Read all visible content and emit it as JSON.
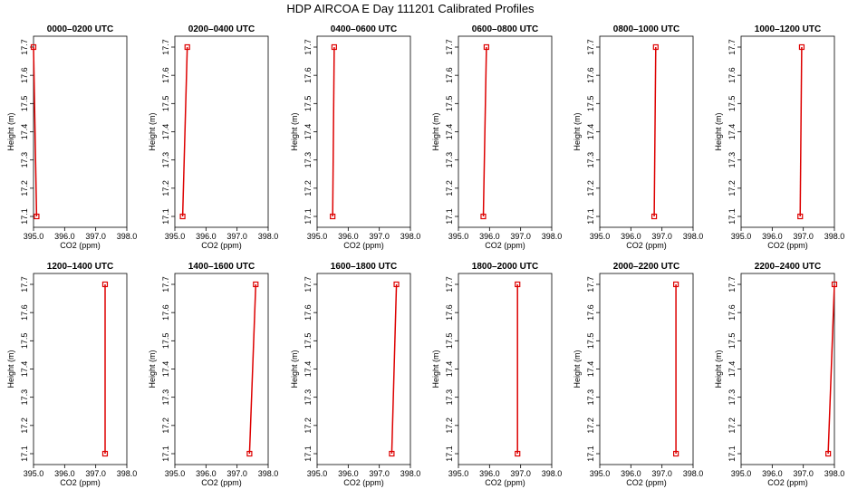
{
  "figure": {
    "title": "HDP AIRCOA E  Day 111201  Calibrated Profiles"
  },
  "style": {
    "line_color": "#dd0000",
    "marker_color": "#dd0000",
    "axis_color": "#000000"
  },
  "chart_data": [
    {
      "type": "line",
      "title": "0000–0200 UTC",
      "xlabel": "CO2 (ppm)",
      "ylabel": "Height (m)",
      "xlim": [
        395.0,
        398.0
      ],
      "ylim": [
        17.1,
        17.7
      ],
      "xticks": [
        "395.0",
        "396.0",
        "397.0",
        "398.0"
      ],
      "yticks": [
        "17.1",
        "17.2",
        "17.3",
        "17.4",
        "17.5",
        "17.6",
        "17.7"
      ],
      "x": [
        395.1,
        395.0
      ],
      "y": [
        17.1,
        17.7
      ]
    },
    {
      "type": "line",
      "title": "0200–0400 UTC",
      "xlabel": "CO2 (ppm)",
      "ylabel": "Height (m)",
      "xlim": [
        395.0,
        398.0
      ],
      "ylim": [
        17.1,
        17.7
      ],
      "xticks": [
        "395.0",
        "396.0",
        "397.0",
        "398.0"
      ],
      "yticks": [
        "17.1",
        "17.2",
        "17.3",
        "17.4",
        "17.5",
        "17.6",
        "17.7"
      ],
      "x": [
        395.25,
        395.4
      ],
      "y": [
        17.1,
        17.7
      ]
    },
    {
      "type": "line",
      "title": "0400–0600 UTC",
      "xlabel": "CO2 (ppm)",
      "ylabel": "Height (m)",
      "xlim": [
        395.0,
        398.0
      ],
      "ylim": [
        17.1,
        17.7
      ],
      "xticks": [
        "395.0",
        "396.0",
        "397.0",
        "398.0"
      ],
      "yticks": [
        "17.1",
        "17.2",
        "17.3",
        "17.4",
        "17.5",
        "17.6",
        "17.7"
      ],
      "x": [
        395.5,
        395.55
      ],
      "y": [
        17.1,
        17.7
      ]
    },
    {
      "type": "line",
      "title": "0600–0800 UTC",
      "xlabel": "CO2 (ppm)",
      "ylabel": "Height (m)",
      "xlim": [
        395.0,
        398.0
      ],
      "ylim": [
        17.1,
        17.7
      ],
      "xticks": [
        "395.0",
        "396.0",
        "397.0",
        "398.0"
      ],
      "yticks": [
        "17.1",
        "17.2",
        "17.3",
        "17.4",
        "17.5",
        "17.6",
        "17.7"
      ],
      "x": [
        395.8,
        395.9
      ],
      "y": [
        17.1,
        17.7
      ]
    },
    {
      "type": "line",
      "title": "0800–1000 UTC",
      "xlabel": "CO2 (ppm)",
      "ylabel": "Height (m)",
      "xlim": [
        395.0,
        398.0
      ],
      "ylim": [
        17.1,
        17.7
      ],
      "xticks": [
        "395.0",
        "396.0",
        "397.0",
        "398.0"
      ],
      "yticks": [
        "17.1",
        "17.2",
        "17.3",
        "17.4",
        "17.5",
        "17.6",
        "17.7"
      ],
      "x": [
        396.75,
        396.8
      ],
      "y": [
        17.1,
        17.7
      ]
    },
    {
      "type": "line",
      "title": "1000–1200 UTC",
      "xlabel": "CO2 (ppm)",
      "ylabel": "Height (m)",
      "xlim": [
        395.0,
        398.0
      ],
      "ylim": [
        17.1,
        17.7
      ],
      "xticks": [
        "395.0",
        "396.0",
        "397.0",
        "398.0"
      ],
      "yticks": [
        "17.1",
        "17.2",
        "17.3",
        "17.4",
        "17.5",
        "17.6",
        "17.7"
      ],
      "x": [
        396.9,
        396.95
      ],
      "y": [
        17.1,
        17.7
      ]
    },
    {
      "type": "line",
      "title": "1200–1400 UTC",
      "xlabel": "CO2 (ppm)",
      "ylabel": "Height (m)",
      "xlim": [
        395.0,
        398.0
      ],
      "ylim": [
        17.1,
        17.7
      ],
      "xticks": [
        "395.0",
        "396.0",
        "397.0",
        "398.0"
      ],
      "yticks": [
        "17.1",
        "17.2",
        "17.3",
        "17.4",
        "17.5",
        "17.6",
        "17.7"
      ],
      "x": [
        397.3,
        397.3
      ],
      "y": [
        17.1,
        17.7
      ]
    },
    {
      "type": "line",
      "title": "1400–1600 UTC",
      "xlabel": "CO2 (ppm)",
      "ylabel": "Height (m)",
      "xlim": [
        395.0,
        398.0
      ],
      "ylim": [
        17.1,
        17.7
      ],
      "xticks": [
        "395.0",
        "396.0",
        "397.0",
        "398.0"
      ],
      "yticks": [
        "17.1",
        "17.2",
        "17.3",
        "17.4",
        "17.5",
        "17.6",
        "17.7"
      ],
      "x": [
        397.4,
        397.6
      ],
      "y": [
        17.1,
        17.7
      ]
    },
    {
      "type": "line",
      "title": "1600–1800 UTC",
      "xlabel": "CO2 (ppm)",
      "ylabel": "Height (m)",
      "xlim": [
        395.0,
        398.0
      ],
      "ylim": [
        17.1,
        17.7
      ],
      "xticks": [
        "395.0",
        "396.0",
        "397.0",
        "398.0"
      ],
      "yticks": [
        "17.1",
        "17.2",
        "17.3",
        "17.4",
        "17.5",
        "17.6",
        "17.7"
      ],
      "x": [
        397.4,
        397.55
      ],
      "y": [
        17.1,
        17.7
      ]
    },
    {
      "type": "line",
      "title": "1800–2000 UTC",
      "xlabel": "CO2 (ppm)",
      "ylabel": "Height (m)",
      "xlim": [
        395.0,
        398.0
      ],
      "ylim": [
        17.1,
        17.7
      ],
      "xticks": [
        "395.0",
        "396.0",
        "397.0",
        "398.0"
      ],
      "yticks": [
        "17.1",
        "17.2",
        "17.3",
        "17.4",
        "17.5",
        "17.6",
        "17.7"
      ],
      "x": [
        396.9,
        396.9
      ],
      "y": [
        17.1,
        17.7
      ]
    },
    {
      "type": "line",
      "title": "2000–2200 UTC",
      "xlabel": "CO2 (ppm)",
      "ylabel": "Height (m)",
      "xlim": [
        395.0,
        398.0
      ],
      "ylim": [
        17.1,
        17.7
      ],
      "xticks": [
        "395.0",
        "396.0",
        "397.0",
        "398.0"
      ],
      "yticks": [
        "17.1",
        "17.2",
        "17.3",
        "17.4",
        "17.5",
        "17.6",
        "17.7"
      ],
      "x": [
        397.45,
        397.45
      ],
      "y": [
        17.1,
        17.7
      ]
    },
    {
      "type": "line",
      "title": "2200–2400 UTC",
      "xlabel": "CO2 (ppm)",
      "ylabel": "Height (m)",
      "xlim": [
        395.0,
        398.0
      ],
      "ylim": [
        17.1,
        17.7
      ],
      "xticks": [
        "395.0",
        "396.0",
        "397.0",
        "398.0"
      ],
      "yticks": [
        "17.1",
        "17.2",
        "17.3",
        "17.4",
        "17.5",
        "17.6",
        "17.7"
      ],
      "x": [
        397.8,
        398.0
      ],
      "y": [
        17.1,
        17.7
      ]
    }
  ]
}
